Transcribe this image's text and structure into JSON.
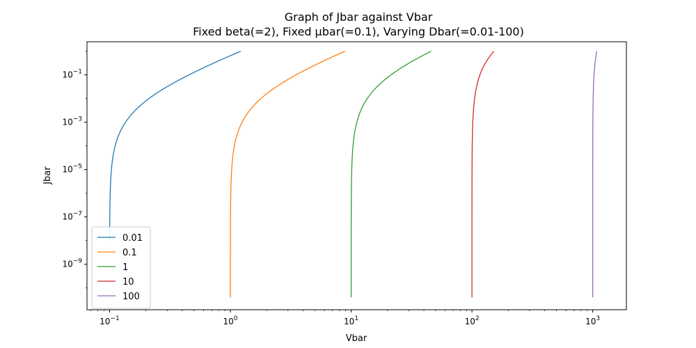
{
  "chart_data": {
    "type": "line",
    "title": "Graph of Jbar against Vbar",
    "subtitle": "Fixed beta(=2), Fixed μbar(=0.1), Varying Dbar(=0.01-100)",
    "xlabel": "Vbar",
    "ylabel": "Jbar",
    "xscale": "log",
    "yscale": "log",
    "xlim": [
      0.065,
      1900
    ],
    "ylim": [
      1.2e-11,
      2.5
    ],
    "x_ticks": [
      {
        "value": 0.1,
        "base": "10",
        "exp": "−1"
      },
      {
        "value": 1,
        "base": "10",
        "exp": "0"
      },
      {
        "value": 10,
        "base": "10",
        "exp": "1"
      },
      {
        "value": 100,
        "base": "10",
        "exp": "2"
      },
      {
        "value": 1000,
        "base": "10",
        "exp": "3"
      }
    ],
    "y_ticks": [
      {
        "value": 1e-09,
        "base": "10",
        "exp": "−9"
      },
      {
        "value": 1e-07,
        "base": "10",
        "exp": "−7"
      },
      {
        "value": 1e-05,
        "base": "10",
        "exp": "−5"
      },
      {
        "value": 0.001,
        "base": "10",
        "exp": "−3"
      },
      {
        "value": 0.1,
        "base": "10",
        "exp": "−1"
      }
    ],
    "grid": false,
    "legend_position": "lower-left",
    "series": [
      {
        "name": "0.01",
        "color": "#1f77b4",
        "dbar": 0.01,
        "x_start": 0.1,
        "x_end": 1.22,
        "y_start": 1e-08,
        "y_end": 1
      },
      {
        "name": "0.1",
        "color": "#ff7f0e",
        "dbar": 0.1,
        "x_start": 1.0,
        "x_end": 8.9,
        "y_start": 4e-11,
        "y_end": 1
      },
      {
        "name": "1",
        "color": "#2ca02c",
        "dbar": 1,
        "x_start": 10.0,
        "x_end": 46,
        "y_start": 4e-11,
        "y_end": 1
      },
      {
        "name": "10",
        "color": "#d62728",
        "dbar": 10,
        "x_start": 100,
        "x_end": 152,
        "y_start": 4e-11,
        "y_end": 1
      },
      {
        "name": "100",
        "color": "#9467bd",
        "dbar": 100,
        "x_start": 1000,
        "x_end": 1080,
        "y_start": 4e-11,
        "y_end": 1
      }
    ]
  }
}
